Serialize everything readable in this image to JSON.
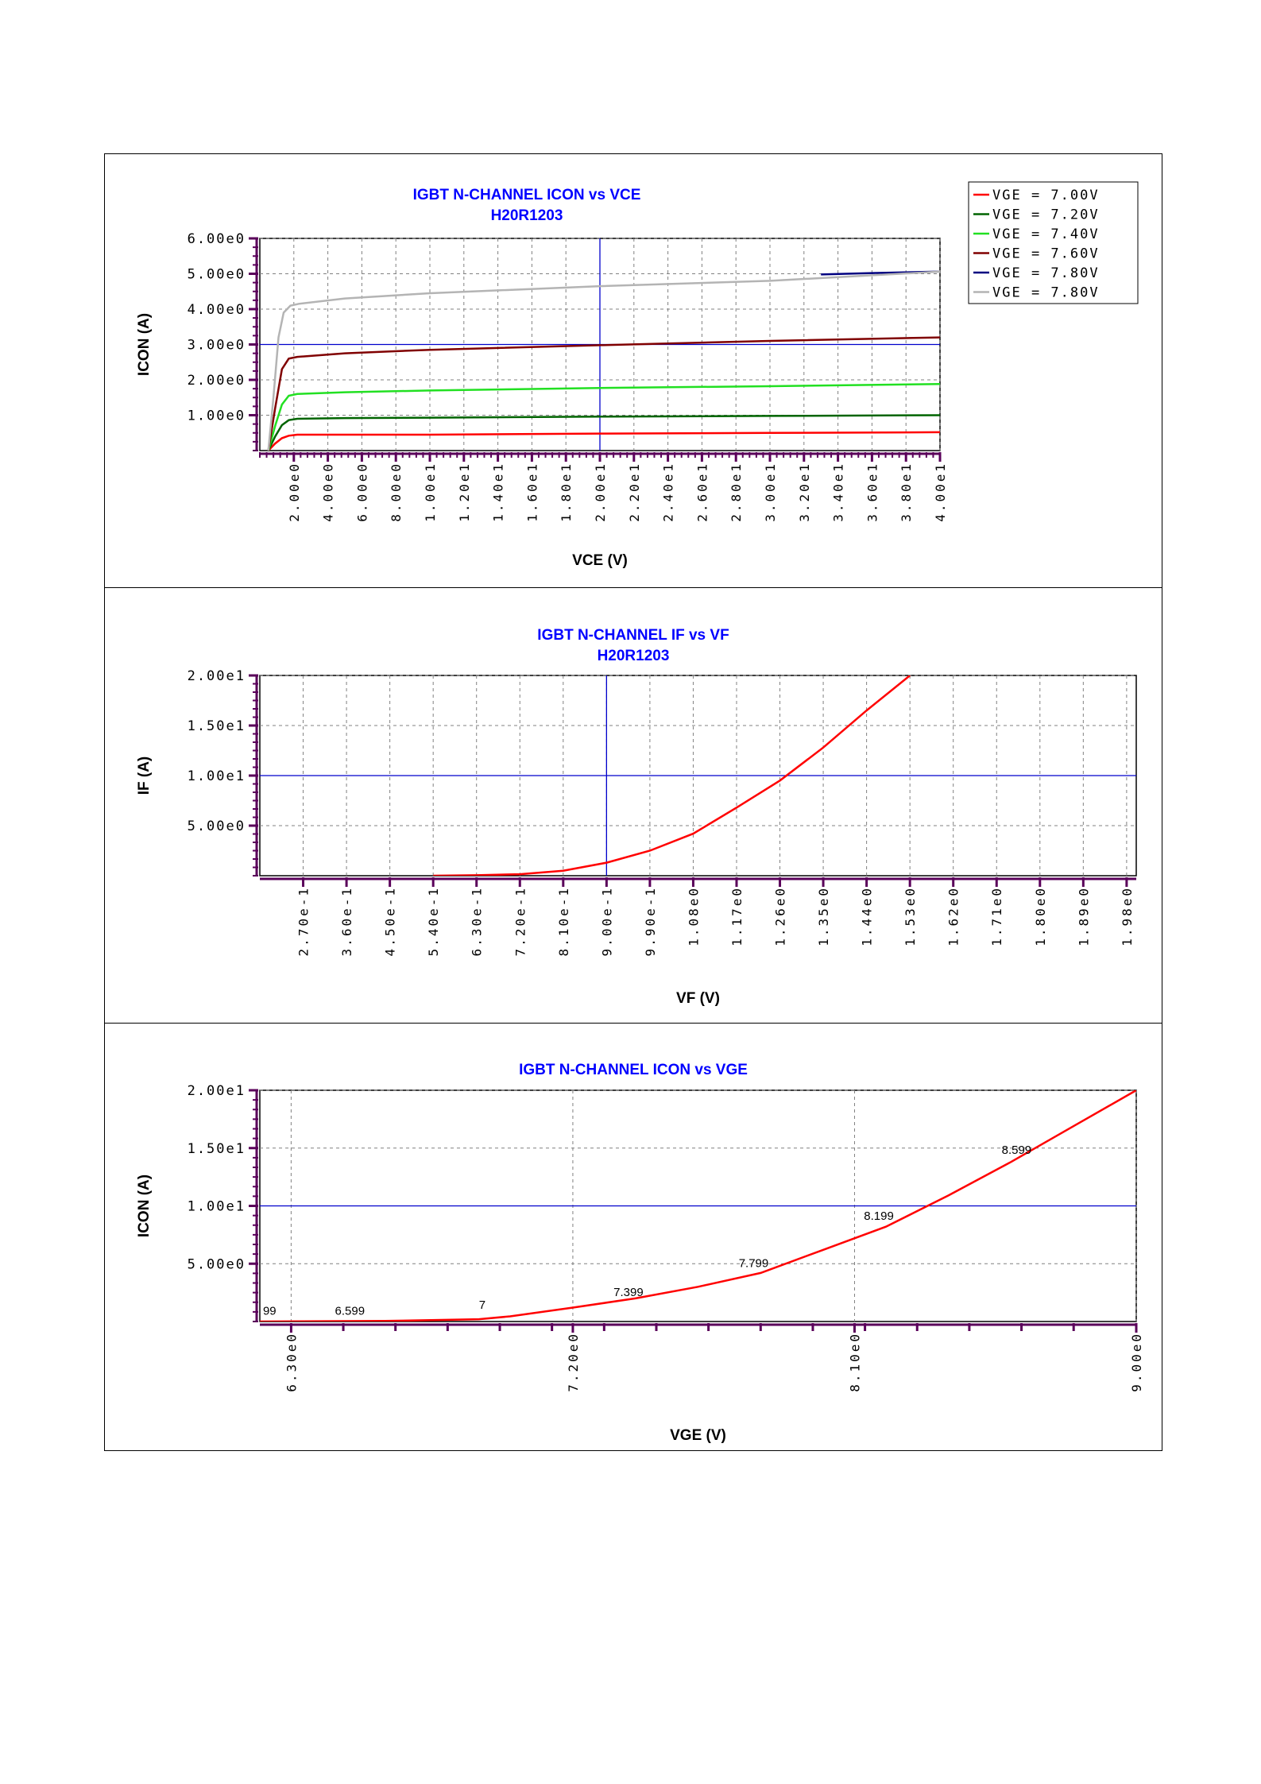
{
  "colors": {
    "title": "#0000ff",
    "grid": "#808080",
    "ref": "#0000cc",
    "tick": "#5a005a",
    "red": "#ff0000",
    "dkgreen": "#006400",
    "ltgreen": "#22e022",
    "maroon": "#800000",
    "navy": "#000080",
    "gray": "#b4b4b4"
  },
  "chart_data": [
    {
      "type": "line",
      "title": "IGBT N-CHANNEL ICON vs VCE",
      "subtitle": "H20R1203",
      "xlabel": "VCE (V)",
      "ylabel": "ICON (A)",
      "xlim": [
        0,
        40
      ],
      "ylim": [
        -0.0,
        6.0
      ],
      "xticks": [
        2,
        4,
        6,
        8,
        10,
        12,
        14,
        16,
        18,
        20,
        22,
        24,
        26,
        28,
        30,
        32,
        34,
        36,
        38,
        40
      ],
      "xtick_labels": [
        "2.00e0",
        "4.00e0",
        "6.00e0",
        "8.00e0",
        "1.00e1",
        "1.20e1",
        "1.40e1",
        "1.60e1",
        "1.80e1",
        "2.00e1",
        "2.20e1",
        "2.40e1",
        "2.60e1",
        "2.80e1",
        "3.00e1",
        "3.20e1",
        "3.40e1",
        "3.60e1",
        "3.80e1",
        "4.00e1"
      ],
      "yticks": [
        1,
        2,
        3,
        4,
        5,
        6
      ],
      "ytick_labels": [
        "1.00e0",
        "2.00e0",
        "3.00e0",
        "4.00e0",
        "5.00e0",
        "6.00e0"
      ],
      "grid": true,
      "ref_lines": {
        "x": 20,
        "y": 3.0
      },
      "legend_position": "top-right",
      "series": [
        {
          "name": "VGE =  7.00V",
          "color": "#ff0000",
          "x": [
            0.5,
            0.9,
            1.3,
            1.7,
            2.2,
            5,
            10,
            20,
            30,
            40
          ],
          "y": [
            0,
            0.2,
            0.35,
            0.42,
            0.45,
            0.45,
            0.45,
            0.48,
            0.5,
            0.52
          ]
        },
        {
          "name": "VGE =  7.20V",
          "color": "#006400",
          "x": [
            0.5,
            0.9,
            1.3,
            1.7,
            2.2,
            5,
            10,
            20,
            30,
            40
          ],
          "y": [
            0,
            0.4,
            0.72,
            0.86,
            0.9,
            0.92,
            0.93,
            0.96,
            0.98,
            1.0
          ]
        },
        {
          "name": "VGE =  7.40V",
          "color": "#22e022",
          "x": [
            0.5,
            0.9,
            1.3,
            1.7,
            2.2,
            5,
            10,
            20,
            30,
            40
          ],
          "y": [
            0,
            0.7,
            1.3,
            1.55,
            1.6,
            1.65,
            1.7,
            1.77,
            1.82,
            1.88
          ]
        },
        {
          "name": "VGE =  7.60V",
          "color": "#800000",
          "x": [
            0.5,
            0.9,
            1.3,
            1.7,
            2.2,
            5,
            10,
            20,
            30,
            40
          ],
          "y": [
            0,
            1.2,
            2.3,
            2.6,
            2.65,
            2.75,
            2.85,
            2.98,
            3.1,
            3.2
          ]
        },
        {
          "name": "VGE =  7.80V",
          "color": "#000080",
          "x": [
            33,
            36,
            40
          ],
          "y": [
            4.98,
            5.02,
            5.06
          ]
        },
        {
          "name": "VGE =  7.80V",
          "color": "#b4b4b4",
          "x": [
            0.5,
            0.8,
            1.1,
            1.4,
            1.8,
            2.3,
            5,
            10,
            20,
            30,
            40
          ],
          "y": [
            0,
            1.5,
            3.2,
            3.9,
            4.1,
            4.15,
            4.3,
            4.45,
            4.65,
            4.8,
            5.06
          ]
        }
      ]
    },
    {
      "type": "line",
      "title": "IGBT N-CHANNEL IF vs VF",
      "subtitle": "H20R1203",
      "xlabel": "VF (V)",
      "ylabel": "IF (A)",
      "xlim": [
        0.18,
        2.0
      ],
      "ylim": [
        0,
        20
      ],
      "xticks": [
        0.27,
        0.36,
        0.45,
        0.54,
        0.63,
        0.72,
        0.81,
        0.9,
        0.99,
        1.08,
        1.17,
        1.26,
        1.35,
        1.44,
        1.53,
        1.62,
        1.71,
        1.8,
        1.89,
        1.98
      ],
      "xtick_labels": [
        "2.70e-1",
        "3.60e-1",
        "4.50e-1",
        "5.40e-1",
        "6.30e-1",
        "7.20e-1",
        "8.10e-1",
        "9.00e-1",
        "9.90e-1",
        "1.08e0",
        "1.17e0",
        "1.26e0",
        "1.35e0",
        "1.44e0",
        "1.53e0",
        "1.62e0",
        "1.71e0",
        "1.80e0",
        "1.89e0",
        "1.98e0"
      ],
      "yticks": [
        5,
        10,
        15,
        20
      ],
      "ytick_labels": [
        "5.00e0",
        "1.00e1",
        "1.50e1",
        "2.00e1"
      ],
      "grid": true,
      "ref_lines": {
        "x": 0.9,
        "y": 10
      },
      "series": [
        {
          "name": "IF",
          "color": "#ff0000",
          "x": [
            0.54,
            0.63,
            0.72,
            0.81,
            0.9,
            0.99,
            1.08,
            1.17,
            1.26,
            1.35,
            1.44,
            1.53
          ],
          "y": [
            0,
            0.05,
            0.15,
            0.5,
            1.3,
            2.5,
            4.2,
            6.8,
            9.5,
            12.8,
            16.5,
            20
          ]
        }
      ]
    },
    {
      "type": "line",
      "title": "IGBT N-CHANNEL ICON vs VGE",
      "subtitle": "",
      "xlabel": "VGE (V)",
      "ylabel": "ICON (A)",
      "xlim": [
        6.2,
        9.0
      ],
      "ylim": [
        0,
        20
      ],
      "xticks": [
        6.3,
        7.2,
        8.1,
        9.0
      ],
      "xtick_labels": [
        "6.30e0",
        "7.20e0",
        "8.10e0",
        "9.00e0"
      ],
      "minor_xticks": [
        6.4667,
        6.6333,
        6.8,
        6.9667,
        7.1333,
        7.3,
        7.4667,
        7.6333,
        7.8,
        7.9667,
        8.1333,
        8.3,
        8.4667,
        8.6333,
        8.8
      ],
      "yticks": [
        5,
        10,
        15,
        20
      ],
      "ytick_labels": [
        "5.00e0",
        "1.00e1",
        "1.50e1",
        "2.00e1"
      ],
      "grid": true,
      "ref_lines": {
        "y": 10
      },
      "series": [
        {
          "name": "ICON",
          "color": "#ff0000",
          "x": [
            6.2,
            6.6,
            6.9,
            7.0,
            7.2,
            7.4,
            7.6,
            7.8,
            8.0,
            8.2,
            8.4,
            8.6,
            8.8,
            9.0
          ],
          "y": [
            0,
            0.05,
            0.2,
            0.45,
            1.2,
            2.0,
            3.0,
            4.2,
            6.2,
            8.2,
            10.9,
            13.8,
            16.9,
            20.0
          ]
        }
      ],
      "annotations": [
        {
          "x": 6.21,
          "y": 0.6,
          "text": "99"
        },
        {
          "x": 6.44,
          "y": 0.6,
          "text": "6.599"
        },
        {
          "x": 6.9,
          "y": 1.1,
          "text": "7"
        },
        {
          "x": 7.33,
          "y": 2.2,
          "text": "7.399"
        },
        {
          "x": 7.73,
          "y": 4.7,
          "text": "7.799"
        },
        {
          "x": 8.13,
          "y": 8.8,
          "text": "8.199"
        },
        {
          "x": 8.57,
          "y": 14.5,
          "text": "8.599"
        }
      ]
    }
  ]
}
